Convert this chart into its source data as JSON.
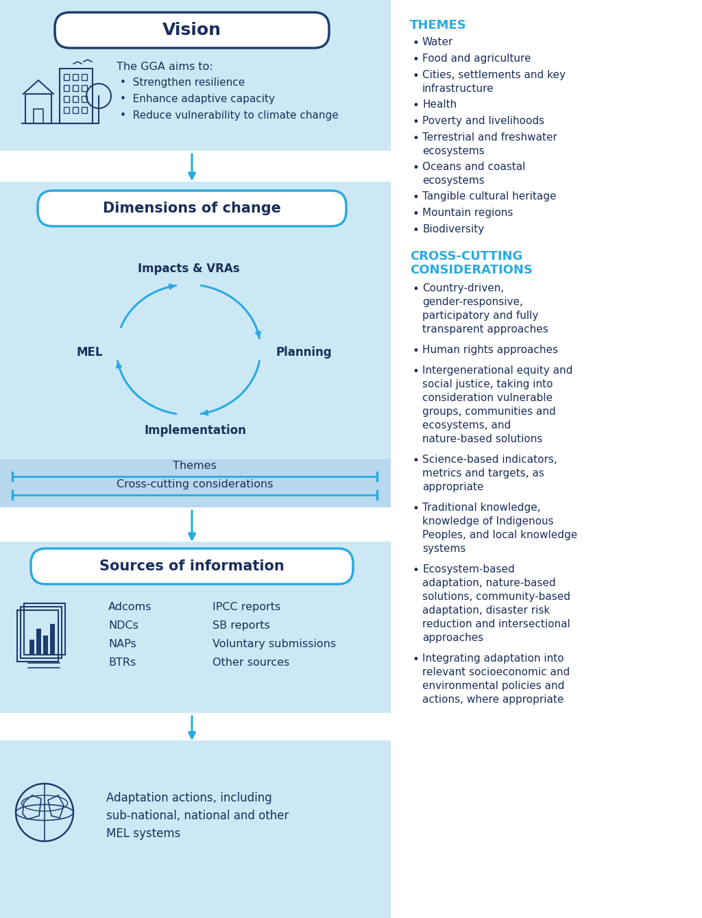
{
  "bg_color": "#ffffff",
  "lbg": "#cde8f5",
  "lbg2": "#d8eef8",
  "sep_bg": "#b8d8ec",
  "cyan": "#29aae1",
  "dark": "#1a2e5a",
  "white": "#ffffff",
  "vision_title": "Vision",
  "gga_intro": "The GGA aims to:",
  "gga_bullets": [
    "Strengthen resilience",
    "Enhance adaptive capacity",
    "Reduce vulnerability to climate change"
  ],
  "dimensions_title": "Dimensions of change",
  "cycle_nodes": [
    "Impacts & VRAs",
    "Planning",
    "Implementation",
    "MEL"
  ],
  "themes_text": "Themes",
  "crosscut_text": "Cross-cutting considerations",
  "sources_title": "Sources of information",
  "sources_col1": [
    "Adcoms",
    "NDCs",
    "NAPs",
    "BTRs"
  ],
  "sources_col2": [
    "IPCC reports",
    "SB reports",
    "Voluntary submissions",
    "Other sources"
  ],
  "bottom_text": "Adaptation actions, including\nsub-national, national and other\nMEL systems",
  "themes_header": "THEMES",
  "themes_items": [
    "Water",
    "Food and agriculture",
    "Cities, settlements and key\ninfrastructure",
    "Health",
    "Poverty and livelihoods",
    "Terrestrial and freshwater\necosystems",
    "Oceans and coastal\necosystems",
    "Tangible cultural heritage",
    "Mountain regions",
    "Biodiversity"
  ],
  "crosscut_header1": "CROSS-CUTTING",
  "crosscut_header2": "CONSIDERATIONS",
  "crosscut_items": [
    "Country-driven,\ngender-responsive,\nparticipatory and fully\ntransparent approaches",
    "Human rights approaches",
    "Intergenerational equity and\nsocial justice, taking into\nconsideration vulnerable\ngroups, communities and\necosystems, and\nnature-based solutions",
    "Science-based indicators,\nmetrics and targets, as\nappropriate",
    "Traditional knowledge,\nknowledge of Indigenous\nPeoples, and local knowledge\nsystems",
    "Ecosystem-based\nadaptation, nature-based\nsolutions, community-based\nadaptation, disaster risk\nreduction and intersectional\napproaches",
    "Integrating adaptation into\nrelevant socioeconomic and\nenvironmental policies and\nactions, where appropriate"
  ]
}
